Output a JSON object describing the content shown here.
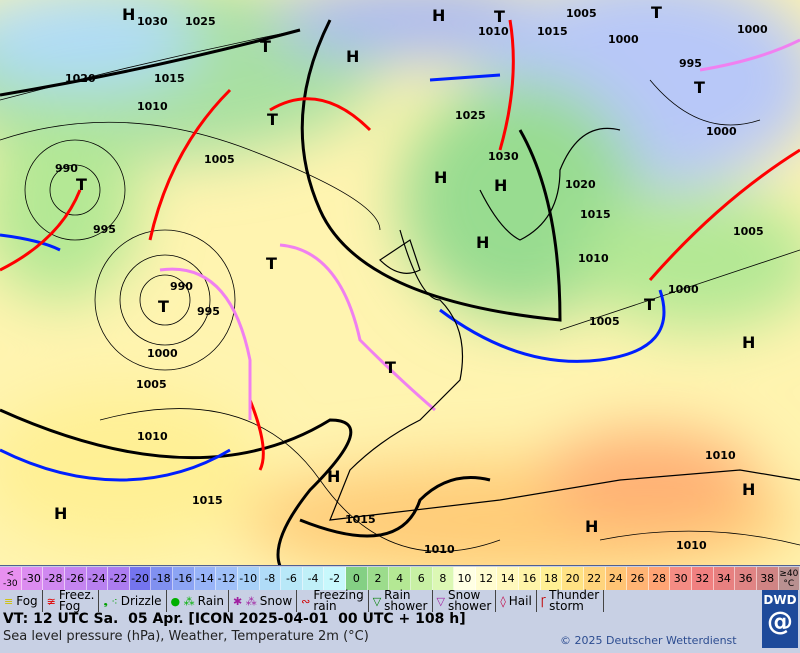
{
  "map": {
    "pressure_labels": [
      "1030",
      "1025",
      "1020",
      "1015",
      "1010",
      "1005",
      "1000",
      "995",
      "990",
      "990",
      "995",
      "1000",
      "1005",
      "1010",
      "1015",
      "1025",
      "1030",
      "1020",
      "1015",
      "1010",
      "1005",
      "1000",
      "995",
      "1000",
      "1005",
      "1010",
      "1015",
      "1015",
      "1010",
      "1010",
      "1010",
      "1000",
      "1005",
      "1010"
    ],
    "systems": [
      "H",
      "T",
      "T",
      "H",
      "T",
      "T",
      "T",
      "H",
      "H",
      "H",
      "T",
      "T",
      "H",
      "H",
      "H",
      "H",
      "H",
      "H",
      "T",
      "T",
      "T"
    ],
    "colors": {
      "cold_front": "#0020ff",
      "warm_front": "#ff0000",
      "occlusion": "#f080f0",
      "isobar": "#000000"
    }
  },
  "scale": {
    "values": [
      "<\n-30",
      "-30",
      "-28",
      "-26",
      "-24",
      "-22",
      "-20",
      "-18",
      "-16",
      "-14",
      "-12",
      "-10",
      "-8",
      "-6",
      "-4",
      "-2",
      "0",
      "2",
      "4",
      "6",
      "8",
      "10",
      "12",
      "14",
      "16",
      "18",
      "20",
      "22",
      "24",
      "26",
      "28",
      "30",
      "32",
      "34",
      "36",
      "38",
      "≥40\n°C"
    ],
    "colors": [
      "#e890f0",
      "#dc8cf0",
      "#d088f0",
      "#c484f0",
      "#b880f0",
      "#ac7cf0",
      "#7474ee",
      "#8090f0",
      "#8ca4f4",
      "#98b4f8",
      "#a0c0f8",
      "#a8d0f8",
      "#b0dcf8",
      "#b8e8f8",
      "#c0f0f8",
      "#c8f8fc",
      "#84d084",
      "#9cdc8c",
      "#b4e894",
      "#c8f0a4",
      "#dcf8b4",
      "#ffffe4",
      "#fffcd0",
      "#fff8bc",
      "#fff4a8",
      "#fff094",
      "#ffe284",
      "#ffd47c",
      "#ffc474",
      "#ffb474",
      "#ffa474",
      "#f48c84",
      "#f08080",
      "#e88080",
      "#e08484",
      "#d08484",
      "#b89090"
    ]
  },
  "legend": [
    {
      "icon": "fog-icon",
      "sym": "≡",
      "color": "#d0c000",
      "label": "Fog"
    },
    {
      "icon": "freezing-fog-icon",
      "sym": "≆",
      "color": "#e00000",
      "label": "Freez.\nFog"
    },
    {
      "icon": "drizzle-icon",
      "sym": "❟ ⁖",
      "color": "#00a000",
      "label": "Drizzle"
    },
    {
      "icon": "rain-icon",
      "sym": "● ⁂",
      "color": "#00b000",
      "label": "Rain"
    },
    {
      "icon": "snow-icon",
      "sym": "✱ ⁂",
      "color": "#a020a0",
      "label": "Snow"
    },
    {
      "icon": "freezing-rain-icon",
      "sym": "∾",
      "color": "#d00000",
      "label": "Freezing\nrain"
    },
    {
      "icon": "rain-shower-icon",
      "sym": "▽",
      "color": "#008000",
      "label": "Rain\nshower"
    },
    {
      "icon": "snow-shower-icon",
      "sym": "▽",
      "color": "#a020a0",
      "label": "Snow\nshower"
    },
    {
      "icon": "hail-icon",
      "sym": "◊",
      "color": "#c00040",
      "label": "Hail"
    },
    {
      "icon": "thunderstorm-icon",
      "sym": "Ꞅ",
      "color": "#c00000",
      "label": "Thunder\nstorm"
    }
  ],
  "footer": {
    "vt": "VT: 12 UTC Sa.  05 Apr. [ICON 2025-04-01  00 UTC + 108 h]",
    "caption": "Sea level pressure (hPa), Weather, Temperature 2m (°C)",
    "copyright": "© 2025 Deutscher Wetterdienst",
    "logo": "DWD"
  }
}
